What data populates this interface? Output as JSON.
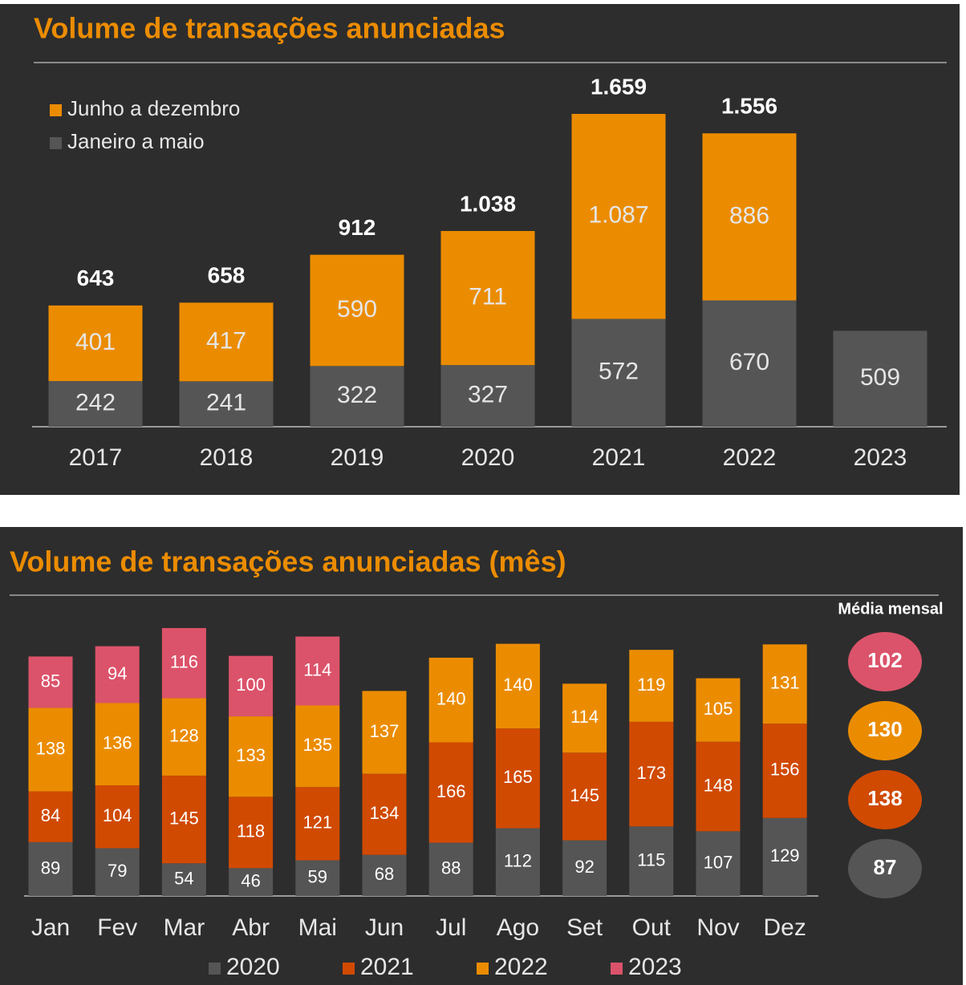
{
  "chart_data": [
    {
      "type": "bar",
      "stacked": true,
      "title": "Volume de transações anunciadas",
      "categories": [
        "2017",
        "2018",
        "2019",
        "2020",
        "2021",
        "2022",
        "2023"
      ],
      "series": [
        {
          "name": "Janeiro a maio",
          "color": "#555555",
          "values": [
            242,
            241,
            322,
            327,
            572,
            670,
            509
          ]
        },
        {
          "name": "Junho a dezembro",
          "color": "#eb8c00",
          "values": [
            401,
            417,
            590,
            711,
            1087,
            886,
            null
          ],
          "value_labels": [
            "401",
            "417",
            "590",
            "711",
            "1.087",
            "886",
            null
          ]
        }
      ],
      "totals": {
        "values": [
          643,
          658,
          912,
          1038,
          1659,
          1556,
          null
        ],
        "value_labels": [
          "643",
          "658",
          "912",
          "1.038",
          "1.659",
          "1.556",
          null
        ]
      }
    },
    {
      "type": "bar",
      "stacked": true,
      "title": "Volume de transações anunciadas (mês)",
      "categories": [
        "Jan",
        "Fev",
        "Mar",
        "Abr",
        "Mai",
        "Jun",
        "Jul",
        "Ago",
        "Set",
        "Out",
        "Nov",
        "Dez"
      ],
      "series": [
        {
          "name": "2020",
          "color": "#555555",
          "values": [
            89,
            79,
            54,
            46,
            59,
            68,
            88,
            112,
            92,
            115,
            107,
            129
          ],
          "average": 87
        },
        {
          "name": "2021",
          "color": "#d04a02",
          "values": [
            84,
            104,
            145,
            118,
            121,
            134,
            166,
            165,
            145,
            173,
            148,
            156
          ],
          "average": 138
        },
        {
          "name": "2022",
          "color": "#eb8c00",
          "values": [
            138,
            136,
            128,
            133,
            135,
            137,
            140,
            140,
            114,
            119,
            105,
            131
          ],
          "average": 130
        },
        {
          "name": "2023",
          "color": "#db536a",
          "values": [
            85,
            94,
            116,
            100,
            114,
            null,
            null,
            null,
            null,
            null,
            null,
            null
          ],
          "average": 102
        }
      ],
      "average_title": "Média mensal"
    }
  ]
}
